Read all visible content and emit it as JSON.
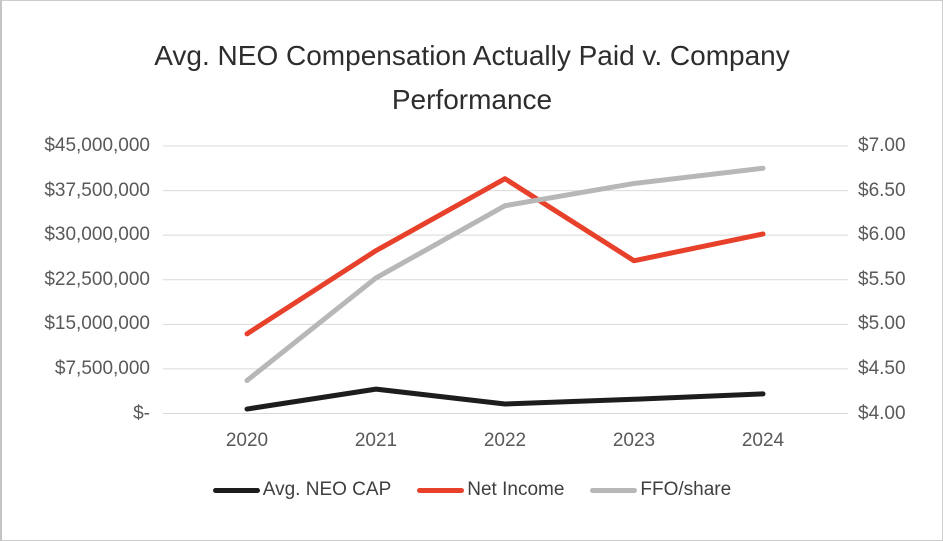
{
  "chart_data": {
    "type": "line",
    "title": "Avg. NEO Compensation Actually Paid v. Company Performance",
    "categories": [
      "2020",
      "2021",
      "2022",
      "2023",
      "2024"
    ],
    "series": [
      {
        "name": "Avg. NEO CAP",
        "axis": "left",
        "color": "#1d1d1d",
        "values": [
          750000,
          4100000,
          1600000,
          2400000,
          3300000
        ]
      },
      {
        "name": "Net Income",
        "axis": "left",
        "color": "#e8412b",
        "values": [
          13400000,
          27400000,
          39500000,
          25700000,
          30200000
        ]
      },
      {
        "name": "FFO/share",
        "axis": "right",
        "color": "#b7b7b7",
        "values": [
          4.37,
          5.52,
          6.33,
          6.58,
          6.75
        ]
      }
    ],
    "left_axis": {
      "min": 0,
      "max": 45000000,
      "tick_labels_top_to_bottom": [
        "$45,000,000",
        "$37,500,000",
        "$30,000,000",
        "$22,500,000",
        "$15,000,000",
        "$7,500,000",
        "$-"
      ]
    },
    "right_axis": {
      "min": 4.0,
      "max": 7.0,
      "tick_labels_top_to_bottom": [
        "$7.00",
        "$6.50",
        "$6.00",
        "$5.50",
        "$5.00",
        "$4.50",
        "$4.00"
      ]
    },
    "grid": true,
    "gridline_color": "#d9d9d9",
    "legend_position": "bottom"
  }
}
